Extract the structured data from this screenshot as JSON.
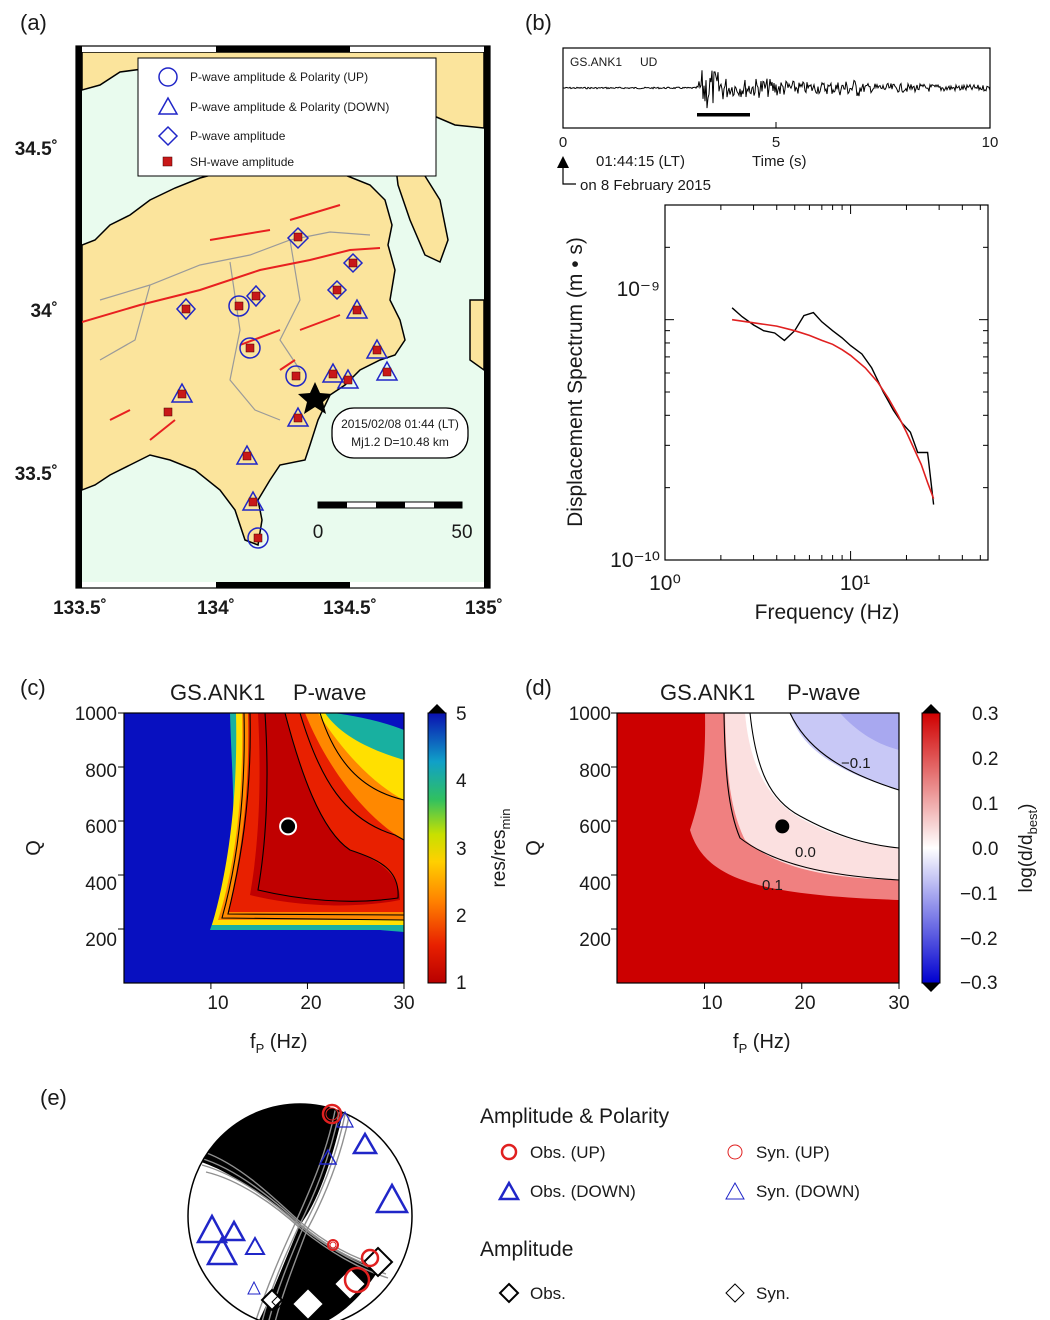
{
  "panels": {
    "a": {
      "label": "(a)",
      "lat_ticks": [
        "34.5˚",
        "34˚",
        "33.5˚"
      ],
      "lon_ticks": [
        "133.5˚",
        "134˚",
        "134.5˚",
        "135˚"
      ],
      "legend": [
        "P-wave amplitude & Polarity (UP)",
        "P-wave amplitude & Polarity (DOWN)",
        "P-wave amplitude",
        "SH-wave amplitude"
      ],
      "event_line1": "2015/02/08  01:44 (LT)",
      "event_line2": "Mj1.2   D=10.48 km",
      "scale_labels": [
        "0",
        "50"
      ]
    },
    "b": {
      "label": "(b)",
      "trace_station": "GS.ANK1",
      "trace_component": "UD",
      "time_ticks": [
        "0",
        "5",
        "10"
      ],
      "time_label": "Time (s)",
      "origin_time": "01:44:15 (LT)",
      "origin_date": "on 8 February 2015",
      "xlabel": "Frequency (Hz)",
      "ylabel": "Displacement Spectrum (m • s)",
      "x_ticks": [
        "10⁰",
        "10¹"
      ],
      "y_ticks": [
        "10⁻⁹",
        "10⁻¹⁰"
      ]
    },
    "c": {
      "label": "(c)",
      "title_station": "GS.ANK1",
      "title_wave": "P-wave",
      "y_ticks": [
        "1000",
        "800",
        "600",
        "400",
        "200"
      ],
      "x_ticks": [
        "10",
        "20",
        "30"
      ],
      "ylabel": "Q",
      "xlabel": "f",
      "xlabel_sub": "P",
      "xlabel_unit": " (Hz)",
      "cbar_ticks": [
        "5",
        "4",
        "3",
        "2",
        "1"
      ],
      "cbar_label": "res/res",
      "cbar_label_sub": "min"
    },
    "d": {
      "label": "(d)",
      "title_station": "GS.ANK1",
      "title_wave": "P-wave",
      "y_ticks": [
        "1000",
        "800",
        "600",
        "400",
        "200"
      ],
      "x_ticks": [
        "10",
        "20",
        "30"
      ],
      "ylabel": "Q",
      "xlabel": "f",
      "xlabel_sub": "P",
      "xlabel_unit": " (Hz)",
      "cbar_ticks": [
        "0.3",
        "0.2",
        "0.1",
        "0.0",
        "−0.1",
        "−0.2",
        "−0.3"
      ],
      "cbar_label": "log(d/d",
      "cbar_label_sub": "best",
      "cbar_label_end": ")",
      "contour_labels": [
        "−0.1",
        "0.0",
        "0.1"
      ]
    },
    "e": {
      "label": "(e)",
      "heading1": "Amplitude & Polarity",
      "obs_up": "Obs. (UP)",
      "syn_up": "Syn. (UP)",
      "obs_down": "Obs. (DOWN)",
      "syn_down": "Syn. (DOWN)",
      "heading2": "Amplitude",
      "obs": "Obs.",
      "syn": "Syn."
    }
  },
  "colors": {
    "land": "#fbe49c",
    "sea": "#e9fbee",
    "station_blue": "#2026c8",
    "sh_red": "#c81818",
    "fault_red": "#e82020",
    "fit_red": "#e02020"
  },
  "chart_data": [
    {
      "type": "line",
      "panel": "b-spectrum",
      "xscale": "log",
      "yscale": "log",
      "xlim": [
        1,
        55
      ],
      "ylim": [
        1e-10,
        3e-09
      ],
      "xlabel": "Frequency (Hz)",
      "ylabel": "Displacement Spectrum (m • s)",
      "series": [
        {
          "values_x": [
            2.3,
            2.6,
            3.0,
            3.4,
            3.9,
            4.4,
            5.0,
            5.6,
            6.3,
            7.0,
            8.0,
            9.0,
            10.0,
            11.5,
            13.0,
            15.0,
            17.0,
            19.0,
            21.0,
            23.0,
            26.0,
            28.0
          ],
          "values_y": [
            1.12e-09,
            1.03e-09,
            9.5e-10,
            9e-10,
            8.8e-10,
            8.2e-10,
            9e-10,
            1.04e-09,
            1.07e-09,
            9.8e-10,
            9e-10,
            8.4e-10,
            7.8e-10,
            7.2e-10,
            6.3e-10,
            5e-10,
            4.2e-10,
            3.7e-10,
            3.4e-10,
            2.8e-10,
            2.8e-10,
            1.7e-10
          ]
        },
        {
          "values_x": [
            2.3,
            3,
            4,
            5,
            6,
            7,
            8,
            9,
            10,
            12,
            14,
            16,
            18,
            20,
            22,
            24,
            26,
            28
          ],
          "values_y": [
            1e-09,
            9.7e-10,
            9.4e-10,
            9e-10,
            8.6e-10,
            8.2e-10,
            7.9e-10,
            7.5e-10,
            7.1e-10,
            6.3e-10,
            5.5e-10,
            4.7e-10,
            4e-10,
            3.4e-10,
            2.9e-10,
            2.5e-10,
            2.1e-10,
            1.8e-10
          ]
        }
      ]
    },
    {
      "type": "heatmap",
      "panel": "c",
      "xlim": [
        1,
        30
      ],
      "ylim": [
        0,
        1000
      ],
      "zlim": [
        1,
        5
      ],
      "best_fit": {
        "fP": 18,
        "Q": 580
      }
    },
    {
      "type": "heatmap",
      "panel": "d",
      "xlim": [
        1,
        30
      ],
      "ylim": [
        0,
        1000
      ],
      "zlim": [
        -0.3,
        0.3
      ],
      "best_fit": {
        "fP": 18,
        "Q": 580
      }
    }
  ]
}
